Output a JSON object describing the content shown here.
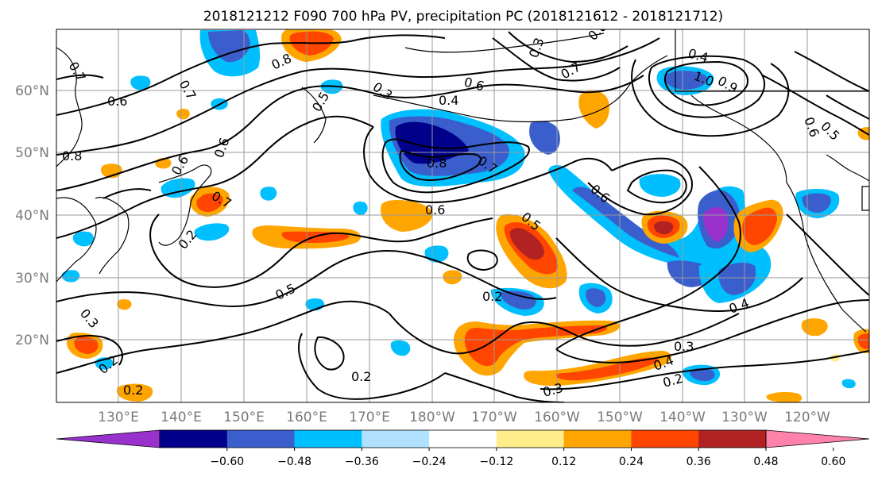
{
  "title": "2018121212 F090 700 hPa PV, precipitation PC (2018121612 - 2018121712)",
  "lat_labels": [
    "60°N",
    "50°N",
    "40°N",
    "30°N",
    "20°N"
  ],
  "lon_labels": [
    "130°E",
    "140°E",
    "150°E",
    "160°E",
    "170°E",
    "180°W",
    "170°W",
    "160°W",
    "150°W",
    "140°W",
    "130°W",
    "120°W"
  ],
  "colorbar": {
    "colors": [
      "#9932cc",
      "#00008b",
      "#3a5fcd",
      "#00bfff",
      "#b0e2ff",
      "#ffffff",
      "#ffec8b",
      "#ffa500",
      "#ff4500",
      "#b22222",
      "#ff82ab"
    ],
    "tick_labels": [
      "−0.60",
      "−0.48",
      "−0.36",
      "−0.24",
      "−0.12",
      "0.12",
      "0.24",
      "0.36",
      "0.48",
      "0.60"
    ]
  },
  "contour_labels": [
    "0.7",
    "0.6",
    "0.8",
    "0.6",
    "0.7",
    "0.3",
    "0.5",
    "0.4",
    "0.3",
    "0.7",
    "0.6",
    "0.4",
    "0.8",
    "1.0",
    "0.9",
    "0.8",
    "0.6",
    "0.7",
    "0.6",
    "0.8",
    "0.6",
    "0.5",
    "0.7",
    "0.6",
    "0.5",
    "0.4",
    "0.5",
    "0.2",
    "0.3",
    "0.3",
    "0.4",
    "0.2",
    "0.2",
    "0.3",
    "0.2",
    "0.2",
    "0.2"
  ]
}
